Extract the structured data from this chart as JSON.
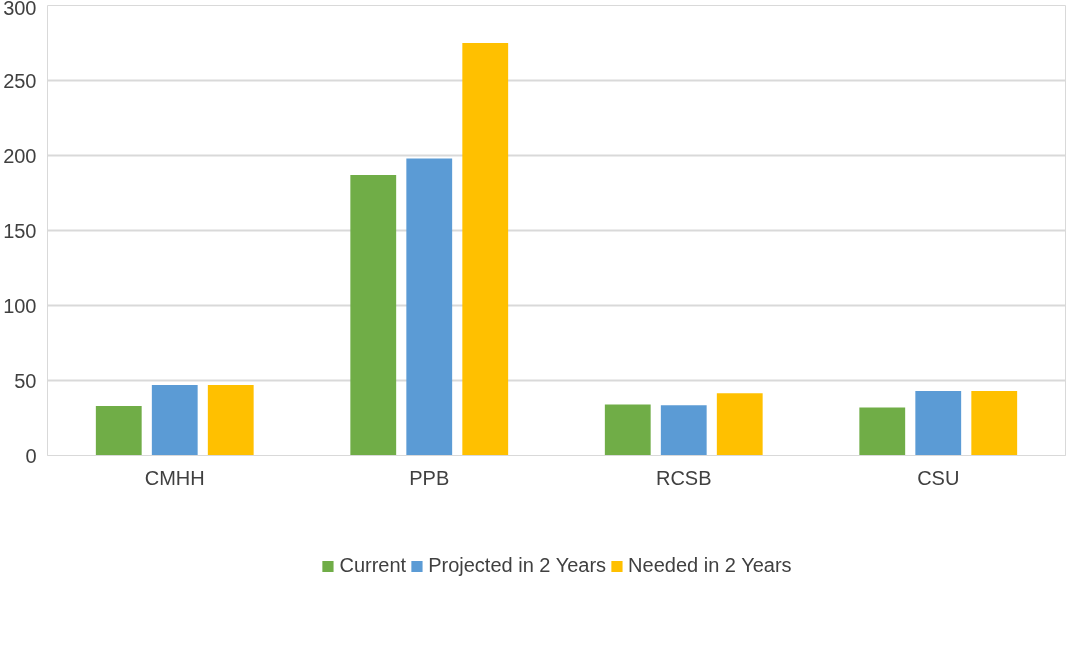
{
  "chart_data": {
    "type": "bar",
    "categories": [
      "CMHH",
      "PPB",
      "RCSB",
      "CSU"
    ],
    "series": [
      {
        "name": "Current",
        "color": "#70ad47",
        "values": [
          33,
          187,
          34,
          32
        ]
      },
      {
        "name": "Projected in 2 Years",
        "color": "#5b9bd5",
        "values": [
          47,
          198,
          33.5,
          43
        ]
      },
      {
        "name": "Needed in 2 Years",
        "color": "#ffc000",
        "values": [
          47,
          275,
          41.5,
          43
        ]
      }
    ],
    "ylim": [
      0,
      300
    ],
    "yticks": [
      0,
      50,
      100,
      150,
      200,
      250,
      300
    ],
    "grid": "y",
    "legend": "bottom"
  }
}
